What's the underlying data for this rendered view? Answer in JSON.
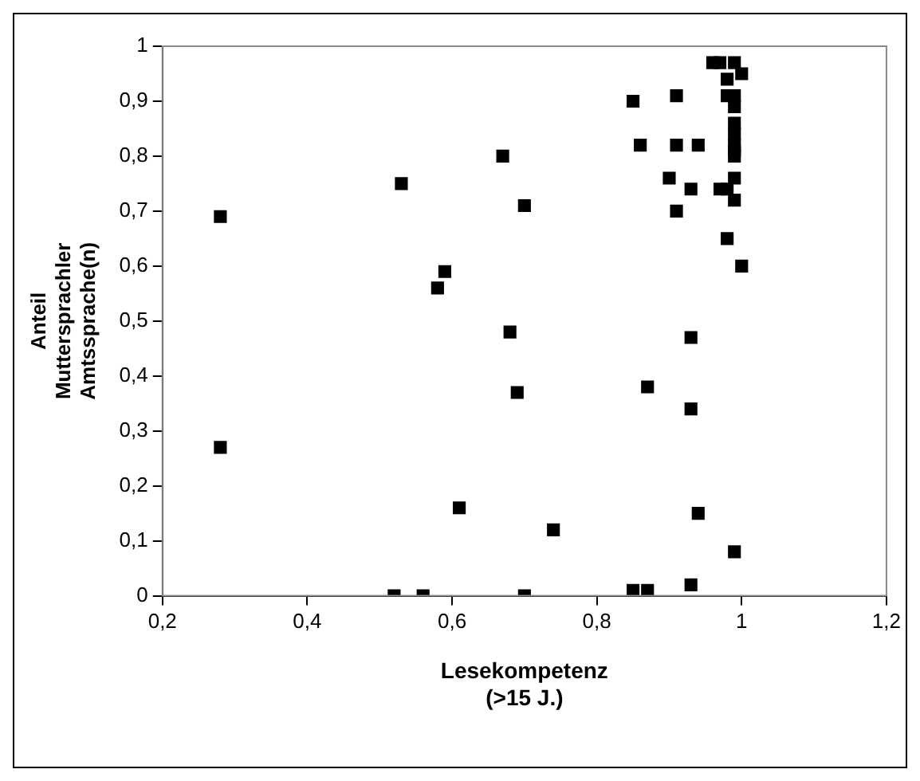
{
  "chart_data": {
    "type": "scatter",
    "xlabel": "Lesekompetenz\n(>15 J.)",
    "ylabel": "Anteil\nMuttersprachler\nAmtssprache(n)",
    "marker": "square",
    "grid": false,
    "legend": false,
    "xlim": [
      0.2,
      1.2
    ],
    "xticks": [
      {
        "value": 0.2,
        "label": "0,2"
      },
      {
        "value": 0.4,
        "label": "0,4"
      },
      {
        "value": 0.6,
        "label": "0,6"
      },
      {
        "value": 0.8,
        "label": "0,8"
      },
      {
        "value": 1,
        "label": "1"
      },
      {
        "value": 1.2,
        "label": "1,2"
      }
    ],
    "ylim": [
      0,
      1
    ],
    "yticks": [
      0,
      {
        "value": 0.1,
        "label": "0,1"
      },
      {
        "value": 0.2,
        "label": "0,2"
      },
      {
        "value": 0.3,
        "label": "0,3"
      },
      {
        "value": 0.4,
        "label": "0,4"
      },
      {
        "value": 0.5,
        "label": "0,5"
      },
      {
        "value": 0.6,
        "label": "0,6"
      },
      {
        "value": 0.7,
        "label": "0,7"
      },
      {
        "value": 0.8,
        "label": "0,8"
      },
      {
        "value": 0.9,
        "label": "0,9"
      },
      1
    ],
    "series": [
      {
        "color": "#000000",
        "x": [
          0.85,
          0.91,
          0.96,
          0.97,
          0.99,
          0.98,
          1.0,
          0.98,
          0.99,
          0.99,
          0.99,
          0.99,
          0.99,
          0.99,
          0.99,
          0.86,
          0.91,
          0.94,
          0.67,
          0.53,
          0.9,
          0.93,
          0.97,
          0.98,
          0.99,
          0.99,
          0.7,
          0.91,
          0.28,
          0.98,
          1.0,
          0.59,
          0.58,
          0.68,
          0.93,
          0.69,
          0.87,
          0.93,
          0.28,
          0.61,
          0.94,
          0.74,
          0.99,
          0.93,
          0.52,
          0.56,
          0.7,
          0.85,
          0.87
        ],
        "values": [
          0.9,
          0.91,
          0.97,
          0.97,
          0.97,
          0.94,
          0.95,
          0.91,
          0.91,
          0.89,
          0.86,
          0.84,
          0.82,
          0.81,
          0.8,
          0.82,
          0.82,
          0.82,
          0.8,
          0.75,
          0.76,
          0.74,
          0.74,
          0.74,
          0.76,
          0.72,
          0.71,
          0.7,
          0.69,
          0.65,
          0.6,
          0.59,
          0.56,
          0.48,
          0.47,
          0.37,
          0.38,
          0.34,
          0.27,
          0.16,
          0.15,
          0.12,
          0.08,
          0.02,
          0.0,
          0.0,
          0.0,
          0.01,
          0.01
        ]
      }
    ]
  }
}
